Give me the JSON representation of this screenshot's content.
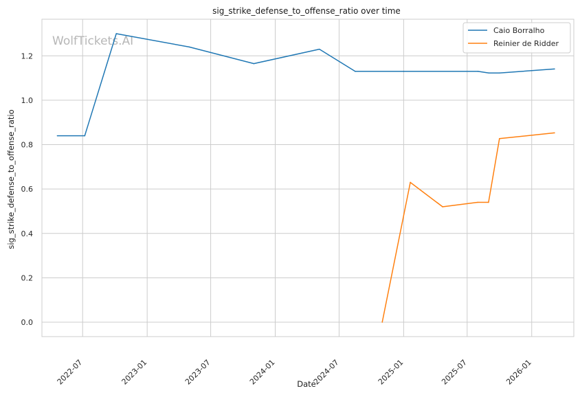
{
  "chart_data": {
    "type": "line",
    "title": "sig_strike_defense_to_offense_ratio over time",
    "xlabel": "Date",
    "ylabel": "sig_strike_defense_to_offense_ratio",
    "watermark": "WolfTickets.AI",
    "xlim": [
      "2022-03-07",
      "2026-05-01"
    ],
    "ylim": [
      -0.065,
      1.365
    ],
    "x_ticks": [
      "2022-07-01",
      "2023-01-01",
      "2023-07-01",
      "2024-01-01",
      "2024-07-01",
      "2025-01-01",
      "2025-07-01",
      "2026-01-01"
    ],
    "x_tick_labels": [
      "2022-07",
      "2023-01",
      "2023-07",
      "2024-01",
      "2024-07",
      "2025-01",
      "2025-07",
      "2026-01"
    ],
    "y_ticks": [
      0.0,
      0.2,
      0.4,
      0.6,
      0.8,
      1.0,
      1.2
    ],
    "y_tick_labels": [
      "0.0",
      "0.2",
      "0.4",
      "0.6",
      "0.8",
      "1.0",
      "1.2"
    ],
    "grid": true,
    "legend_position": "top-right",
    "series": [
      {
        "name": "Caio Borralho",
        "color": "#1f77b4",
        "x": [
          "2022-04-20",
          "2022-07-07",
          "2022-10-05",
          "2023-05-01",
          "2023-11-01",
          "2024-05-06",
          "2024-08-16",
          "2025-01-01",
          "2025-08-01",
          "2025-09-01",
          "2025-10-01",
          "2026-03-07"
        ],
        "y": [
          0.84,
          0.84,
          1.3,
          1.24,
          1.165,
          1.23,
          1.13,
          1.13,
          1.13,
          1.123,
          1.123,
          1.141
        ]
      },
      {
        "name": "Reinier de Ridder",
        "color": "#ff7f0e",
        "x": [
          "2024-11-01",
          "2025-01-20",
          "2025-04-22",
          "2025-07-31",
          "2025-08-31",
          "2025-10-01",
          "2026-03-07"
        ],
        "y": [
          0.0,
          0.63,
          0.52,
          0.54,
          0.54,
          0.827,
          0.853
        ]
      }
    ]
  }
}
